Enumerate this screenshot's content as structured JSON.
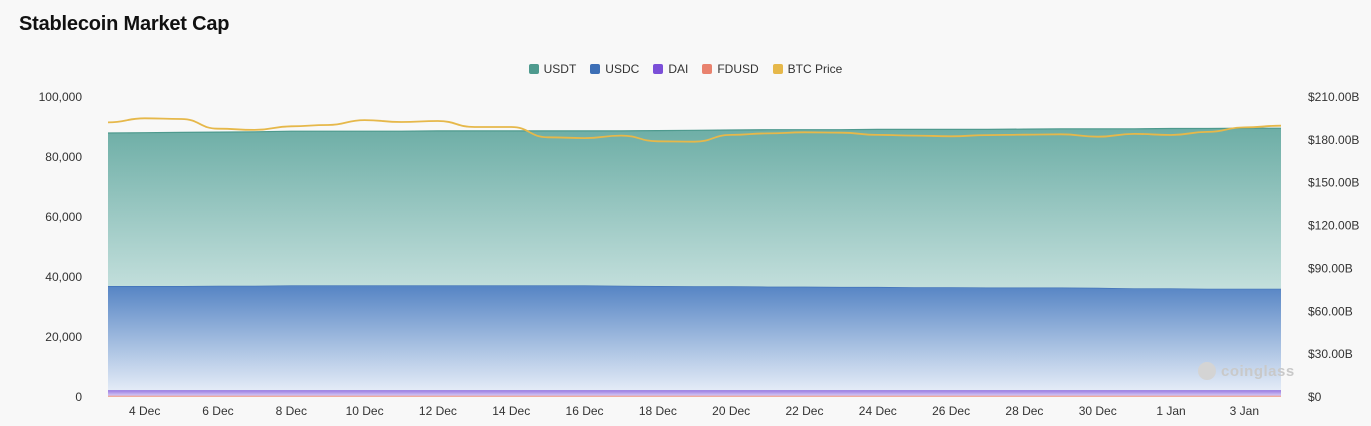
{
  "title": "Stablecoin Market Cap",
  "legend": [
    {
      "name": "USDT",
      "color": "#4e9a8e"
    },
    {
      "name": "USDC",
      "color": "#3d6fb6"
    },
    {
      "name": "DAI",
      "color": "#7b4fd8"
    },
    {
      "name": "FDUSD",
      "color": "#e9826e"
    },
    {
      "name": "BTC Price",
      "color": "#e6b84a"
    }
  ],
  "watermark": "coinglass",
  "chart_data": {
    "type": "area",
    "x": [
      "3 Dec",
      "4 Dec",
      "5 Dec",
      "6 Dec",
      "7 Dec",
      "8 Dec",
      "9 Dec",
      "10 Dec",
      "11 Dec",
      "12 Dec",
      "13 Dec",
      "14 Dec",
      "15 Dec",
      "16 Dec",
      "17 Dec",
      "18 Dec",
      "19 Dec",
      "20 Dec",
      "21 Dec",
      "22 Dec",
      "23 Dec",
      "24 Dec",
      "25 Dec",
      "26 Dec",
      "27 Dec",
      "28 Dec",
      "29 Dec",
      "30 Dec",
      "31 Dec",
      "1 Jan",
      "2 Jan",
      "3 Jan",
      "4 Jan"
    ],
    "x_tick_labels": [
      "4 Dec",
      "6 Dec",
      "8 Dec",
      "10 Dec",
      "12 Dec",
      "14 Dec",
      "16 Dec",
      "18 Dec",
      "20 Dec",
      "22 Dec",
      "24 Dec",
      "26 Dec",
      "28 Dec",
      "30 Dec",
      "1 Jan",
      "3 Jan"
    ],
    "stacked": true,
    "series": [
      {
        "name": "FDUSD",
        "axis": "left",
        "color": "#e9826e",
        "values": [
          400,
          400,
          400,
          400,
          400,
          400,
          400,
          400,
          400,
          400,
          400,
          400,
          400,
          400,
          400,
          400,
          400,
          400,
          400,
          400,
          400,
          400,
          400,
          400,
          400,
          400,
          400,
          400,
          400,
          400,
          400,
          400,
          400
        ]
      },
      {
        "name": "DAI",
        "axis": "left",
        "color": "#7b4fd8",
        "values": [
          1800,
          1800,
          1800,
          1800,
          1800,
          1800,
          1800,
          1800,
          1800,
          1800,
          1800,
          1800,
          1800,
          1800,
          1800,
          1800,
          1800,
          1800,
          1800,
          1800,
          1800,
          1800,
          1800,
          1800,
          1800,
          1800,
          1800,
          1800,
          1800,
          1800,
          1800,
          1800,
          1800
        ]
      },
      {
        "name": "USDC",
        "axis": "left",
        "color": "#3d6fb6",
        "values": [
          34800,
          34800,
          34800,
          34900,
          34900,
          35000,
          35000,
          35000,
          35000,
          35000,
          35000,
          35000,
          35000,
          35000,
          34900,
          34800,
          34700,
          34700,
          34600,
          34600,
          34500,
          34500,
          34400,
          34400,
          34300,
          34300,
          34300,
          34200,
          34000,
          34000,
          33900,
          33900,
          33900
        ]
      },
      {
        "name": "USDT",
        "axis": "left",
        "color": "#4e9a8e",
        "values": [
          51000,
          51100,
          51200,
          51200,
          51300,
          51400,
          51400,
          51400,
          51400,
          51500,
          51500,
          51500,
          51500,
          51500,
          51600,
          51800,
          52000,
          52100,
          52300,
          52300,
          52400,
          52500,
          52600,
          52600,
          52700,
          52800,
          52900,
          53000,
          53200,
          53300,
          53400,
          53500,
          53500
        ]
      },
      {
        "name": "BTC Price",
        "axis": "right",
        "type": "line",
        "color": "#e6b84a",
        "values": [
          192.2,
          195.1,
          194.6,
          187.8,
          187.0,
          189.5,
          190.4,
          193.8,
          192.5,
          193.2,
          189.0,
          189.0,
          181.8,
          181.2,
          183.0,
          179.0,
          178.7,
          183.5,
          184.5,
          185.3,
          185.0,
          183.5,
          183.0,
          182.5,
          183.3,
          183.6,
          183.9,
          182.2,
          184.2,
          183.4,
          185.6,
          188.7,
          189.9
        ]
      }
    ],
    "yaxis_left": {
      "min": 0,
      "max": 100000,
      "ticks": [
        "0",
        "20,000",
        "40,000",
        "60,000",
        "80,000",
        "100,000"
      ]
    },
    "yaxis_right": {
      "min": 0,
      "max": 210,
      "ticks": [
        "$0",
        "$30.00B",
        "$60.00B",
        "$90.00B",
        "$120.00B",
        "$150.00B",
        "$180.00B",
        "$210.00B"
      ]
    },
    "legend_position": "top-center",
    "grid": false
  }
}
